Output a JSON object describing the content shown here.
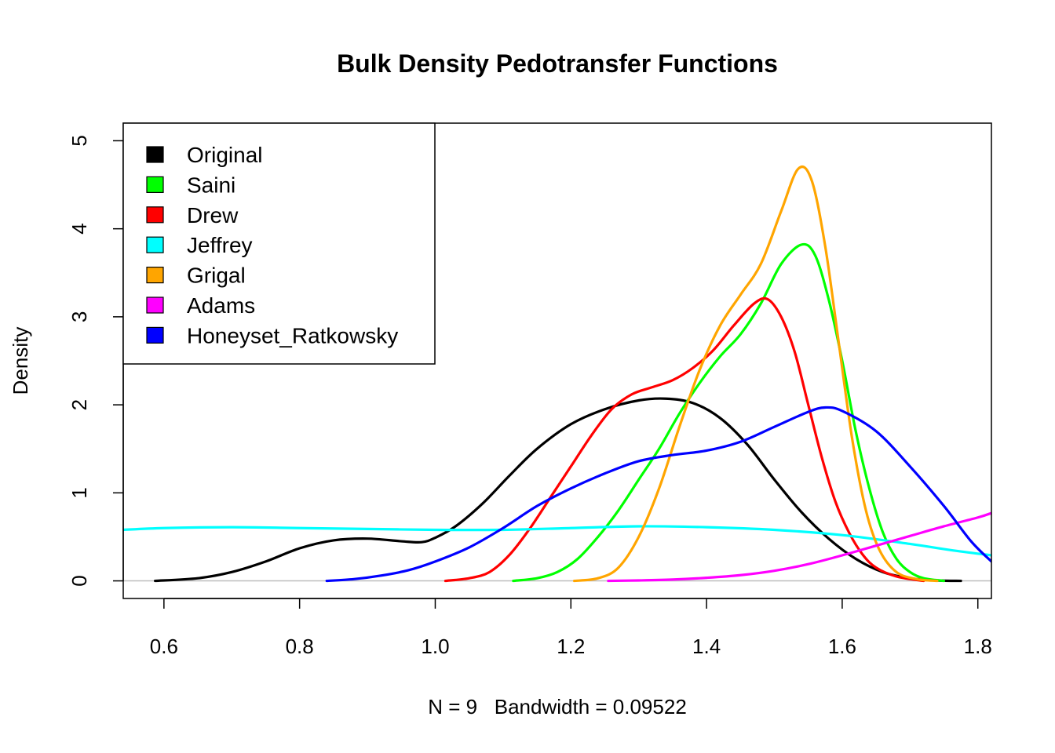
{
  "chart_data": {
    "type": "line",
    "title": "Bulk Density Pedotransfer Functions",
    "xlabel": "N = 9   Bandwidth = 0.09522",
    "ylabel": "Density",
    "xlim": [
      0.54,
      1.82
    ],
    "ylim": [
      -0.2,
      5.2
    ],
    "x_ticks": [
      0.6,
      0.8,
      1.0,
      1.2,
      1.4,
      1.6,
      1.8
    ],
    "x_tick_labels": [
      "0.6",
      "0.8",
      "1.0",
      "1.2",
      "1.4",
      "1.6",
      "1.8"
    ],
    "y_ticks": [
      0,
      1,
      2,
      3,
      4,
      5
    ],
    "y_tick_labels": [
      "0",
      "1",
      "2",
      "3",
      "4",
      "5"
    ],
    "zero_line": true,
    "grid": false,
    "legend_position": "top-left",
    "series": [
      {
        "name": "Original",
        "color": "#000000",
        "points": [
          [
            0.587,
            0.0
          ],
          [
            0.65,
            0.03
          ],
          [
            0.7,
            0.1
          ],
          [
            0.75,
            0.22
          ],
          [
            0.8,
            0.37
          ],
          [
            0.85,
            0.46
          ],
          [
            0.9,
            0.48
          ],
          [
            0.95,
            0.45
          ],
          [
            0.98,
            0.44
          ],
          [
            1.0,
            0.49
          ],
          [
            1.03,
            0.62
          ],
          [
            1.07,
            0.88
          ],
          [
            1.11,
            1.2
          ],
          [
            1.15,
            1.5
          ],
          [
            1.2,
            1.78
          ],
          [
            1.25,
            1.95
          ],
          [
            1.3,
            2.05
          ],
          [
            1.34,
            2.07
          ],
          [
            1.38,
            2.02
          ],
          [
            1.42,
            1.85
          ],
          [
            1.46,
            1.55
          ],
          [
            1.5,
            1.15
          ],
          [
            1.54,
            0.78
          ],
          [
            1.58,
            0.48
          ],
          [
            1.62,
            0.25
          ],
          [
            1.66,
            0.1
          ],
          [
            1.7,
            0.03
          ],
          [
            1.74,
            0.005
          ],
          [
            1.775,
            0.0
          ]
        ]
      },
      {
        "name": "Saini",
        "color": "#00ff00",
        "points": [
          [
            1.115,
            0.0
          ],
          [
            1.15,
            0.03
          ],
          [
            1.18,
            0.1
          ],
          [
            1.21,
            0.25
          ],
          [
            1.24,
            0.5
          ],
          [
            1.27,
            0.8
          ],
          [
            1.3,
            1.15
          ],
          [
            1.33,
            1.5
          ],
          [
            1.36,
            1.9
          ],
          [
            1.39,
            2.25
          ],
          [
            1.42,
            2.55
          ],
          [
            1.45,
            2.8
          ],
          [
            1.48,
            3.15
          ],
          [
            1.51,
            3.6
          ],
          [
            1.54,
            3.82
          ],
          [
            1.56,
            3.7
          ],
          [
            1.58,
            3.2
          ],
          [
            1.6,
            2.5
          ],
          [
            1.62,
            1.7
          ],
          [
            1.64,
            1.05
          ],
          [
            1.66,
            0.55
          ],
          [
            1.68,
            0.25
          ],
          [
            1.7,
            0.1
          ],
          [
            1.72,
            0.03
          ],
          [
            1.75,
            0.0
          ]
        ]
      },
      {
        "name": "Drew",
        "color": "#ff0000",
        "points": [
          [
            1.015,
            0.0
          ],
          [
            1.05,
            0.03
          ],
          [
            1.08,
            0.1
          ],
          [
            1.11,
            0.3
          ],
          [
            1.14,
            0.6
          ],
          [
            1.17,
            0.95
          ],
          [
            1.2,
            1.3
          ],
          [
            1.23,
            1.65
          ],
          [
            1.26,
            1.95
          ],
          [
            1.29,
            2.12
          ],
          [
            1.32,
            2.2
          ],
          [
            1.35,
            2.28
          ],
          [
            1.38,
            2.42
          ],
          [
            1.41,
            2.62
          ],
          [
            1.44,
            2.9
          ],
          [
            1.47,
            3.15
          ],
          [
            1.49,
            3.2
          ],
          [
            1.51,
            3.0
          ],
          [
            1.53,
            2.6
          ],
          [
            1.55,
            2.0
          ],
          [
            1.57,
            1.4
          ],
          [
            1.59,
            0.9
          ],
          [
            1.61,
            0.55
          ],
          [
            1.63,
            0.3
          ],
          [
            1.65,
            0.15
          ],
          [
            1.68,
            0.05
          ],
          [
            1.72,
            0.0
          ]
        ]
      },
      {
        "name": "Jeffrey",
        "color": "#00ffff",
        "points": [
          [
            0.54,
            0.58
          ],
          [
            0.6,
            0.6
          ],
          [
            0.7,
            0.61
          ],
          [
            0.8,
            0.6
          ],
          [
            0.9,
            0.59
          ],
          [
            1.0,
            0.58
          ],
          [
            1.1,
            0.58
          ],
          [
            1.2,
            0.6
          ],
          [
            1.3,
            0.62
          ],
          [
            1.4,
            0.61
          ],
          [
            1.5,
            0.58
          ],
          [
            1.6,
            0.52
          ],
          [
            1.7,
            0.42
          ],
          [
            1.76,
            0.35
          ],
          [
            1.82,
            0.29
          ]
        ]
      },
      {
        "name": "Grigal",
        "color": "#ffa500",
        "points": [
          [
            1.205,
            0.0
          ],
          [
            1.24,
            0.03
          ],
          [
            1.27,
            0.15
          ],
          [
            1.3,
            0.5
          ],
          [
            1.33,
            1.05
          ],
          [
            1.36,
            1.75
          ],
          [
            1.39,
            2.4
          ],
          [
            1.42,
            2.9
          ],
          [
            1.45,
            3.25
          ],
          [
            1.48,
            3.6
          ],
          [
            1.51,
            4.2
          ],
          [
            1.535,
            4.68
          ],
          [
            1.555,
            4.55
          ],
          [
            1.575,
            3.8
          ],
          [
            1.595,
            2.7
          ],
          [
            1.615,
            1.6
          ],
          [
            1.635,
            0.8
          ],
          [
            1.655,
            0.35
          ],
          [
            1.68,
            0.1
          ],
          [
            1.71,
            0.02
          ],
          [
            1.74,
            0.0
          ]
        ]
      },
      {
        "name": "Adams",
        "color": "#ff00ff",
        "points": [
          [
            1.255,
            0.0
          ],
          [
            1.3,
            0.005
          ],
          [
            1.35,
            0.015
          ],
          [
            1.4,
            0.035
          ],
          [
            1.45,
            0.065
          ],
          [
            1.5,
            0.115
          ],
          [
            1.55,
            0.19
          ],
          [
            1.6,
            0.29
          ],
          [
            1.65,
            0.4
          ],
          [
            1.7,
            0.51
          ],
          [
            1.75,
            0.62
          ],
          [
            1.8,
            0.72
          ],
          [
            1.82,
            0.77
          ]
        ]
      },
      {
        "name": "Honeyset_Ratkowsky",
        "color": "#0000ff",
        "points": [
          [
            0.84,
            0.0
          ],
          [
            0.88,
            0.02
          ],
          [
            0.92,
            0.06
          ],
          [
            0.96,
            0.12
          ],
          [
            1.0,
            0.22
          ],
          [
            1.05,
            0.38
          ],
          [
            1.1,
            0.6
          ],
          [
            1.15,
            0.85
          ],
          [
            1.2,
            1.05
          ],
          [
            1.25,
            1.22
          ],
          [
            1.3,
            1.36
          ],
          [
            1.35,
            1.43
          ],
          [
            1.4,
            1.48
          ],
          [
            1.45,
            1.58
          ],
          [
            1.5,
            1.75
          ],
          [
            1.55,
            1.92
          ],
          [
            1.575,
            1.97
          ],
          [
            1.6,
            1.93
          ],
          [
            1.65,
            1.7
          ],
          [
            1.7,
            1.3
          ],
          [
            1.75,
            0.85
          ],
          [
            1.79,
            0.45
          ],
          [
            1.82,
            0.22
          ]
        ]
      }
    ]
  }
}
